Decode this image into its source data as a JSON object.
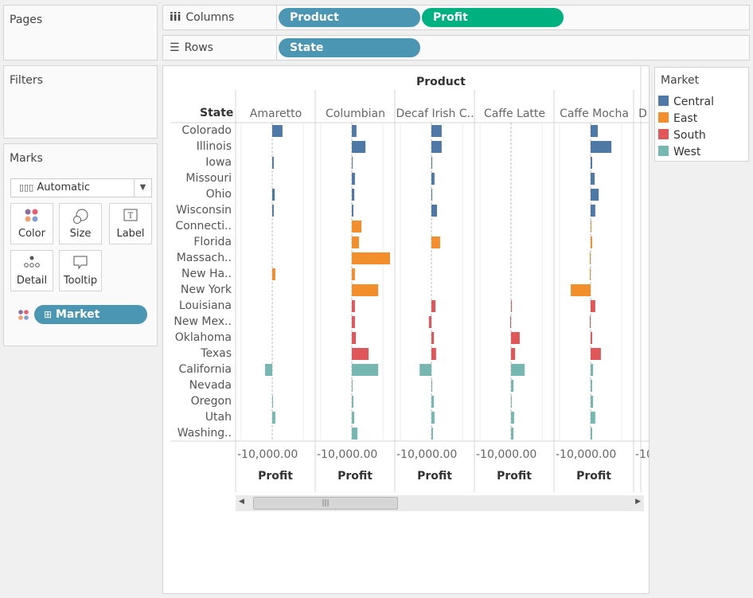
{
  "shelves": {
    "columns_label": "Columns",
    "rows_label": "Rows",
    "columns_pills": [
      "Product",
      "Profit"
    ],
    "rows_pills": [
      "State"
    ]
  },
  "cards": {
    "pages": "Pages",
    "filters": "Filters",
    "marks": "Marks"
  },
  "marks": {
    "type": "Automatic",
    "buttons": [
      "Color",
      "Size",
      "Label",
      "Detail",
      "Tooltip"
    ],
    "color_pill": "Market"
  },
  "colors": {
    "dimension_pill": "#4a96b3",
    "measure_pill": "#00b180",
    "Central": "#4e79a7",
    "East": "#f28e2b",
    "South": "#e15759",
    "West": "#76b7b2"
  },
  "legend": {
    "title": "Market",
    "items": [
      "Central",
      "East",
      "South",
      "West"
    ]
  },
  "chart_data": {
    "type": "bar",
    "column_header": "Product",
    "row_header": "State",
    "axis_title": "Profit",
    "axis_tick_label": "-10,000.00",
    "products": [
      "Amaretto",
      "Columbian",
      "Decaf Irish C..",
      "Caffe Latte",
      "Caffe Mocha",
      "D"
    ],
    "states": [
      "Colorado",
      "Illinois",
      "Iowa",
      "Missouri",
      "Ohio",
      "Wisconsin",
      "Connecti..",
      "Florida",
      "Massach..",
      "New Ha..",
      "New York",
      "Louisiana",
      "New Mex..",
      "Oklahoma",
      "Texas",
      "California",
      "Nevada",
      "Oregon",
      "Utah",
      "Washing.."
    ],
    "market": [
      "Central",
      "Central",
      "Central",
      "Central",
      "Central",
      "Central",
      "East",
      "East",
      "East",
      "East",
      "East",
      "South",
      "South",
      "South",
      "South",
      "West",
      "West",
      "West",
      "West",
      "West"
    ],
    "xlim": [
      -12000,
      14000
    ],
    "gridlines": [
      -10000,
      0,
      10000
    ],
    "values": {
      "Amaretto": [
        3300,
        null,
        500,
        null,
        800,
        500,
        null,
        null,
        null,
        1000,
        null,
        null,
        null,
        null,
        null,
        -2300,
        null,
        200,
        1000,
        null
      ],
      "Columbian": [
        1500,
        4400,
        200,
        1000,
        800,
        500,
        3100,
        2300,
        12300,
        1000,
        8500,
        1000,
        1000,
        1300,
        5400,
        8500,
        200,
        500,
        800,
        1800
      ],
      "Decaf Irish C..": [
        3300,
        3300,
        200,
        1000,
        200,
        1800,
        null,
        2800,
        null,
        null,
        null,
        1300,
        -800,
        800,
        1500,
        -3800,
        200,
        800,
        1000,
        500
      ],
      "Caffe Latte": [
        null,
        null,
        null,
        null,
        null,
        null,
        null,
        null,
        null,
        null,
        null,
        200,
        -200,
        2800,
        1300,
        4400,
        800,
        200,
        1000,
        800
      ],
      "Caffe Mocha": [
        2300,
        6700,
        500,
        1300,
        2600,
        1500,
        200,
        500,
        -200,
        -200,
        -6400,
        1500,
        -200,
        500,
        3300,
        800,
        500,
        800,
        1500,
        500
      ],
      "D": []
    }
  }
}
